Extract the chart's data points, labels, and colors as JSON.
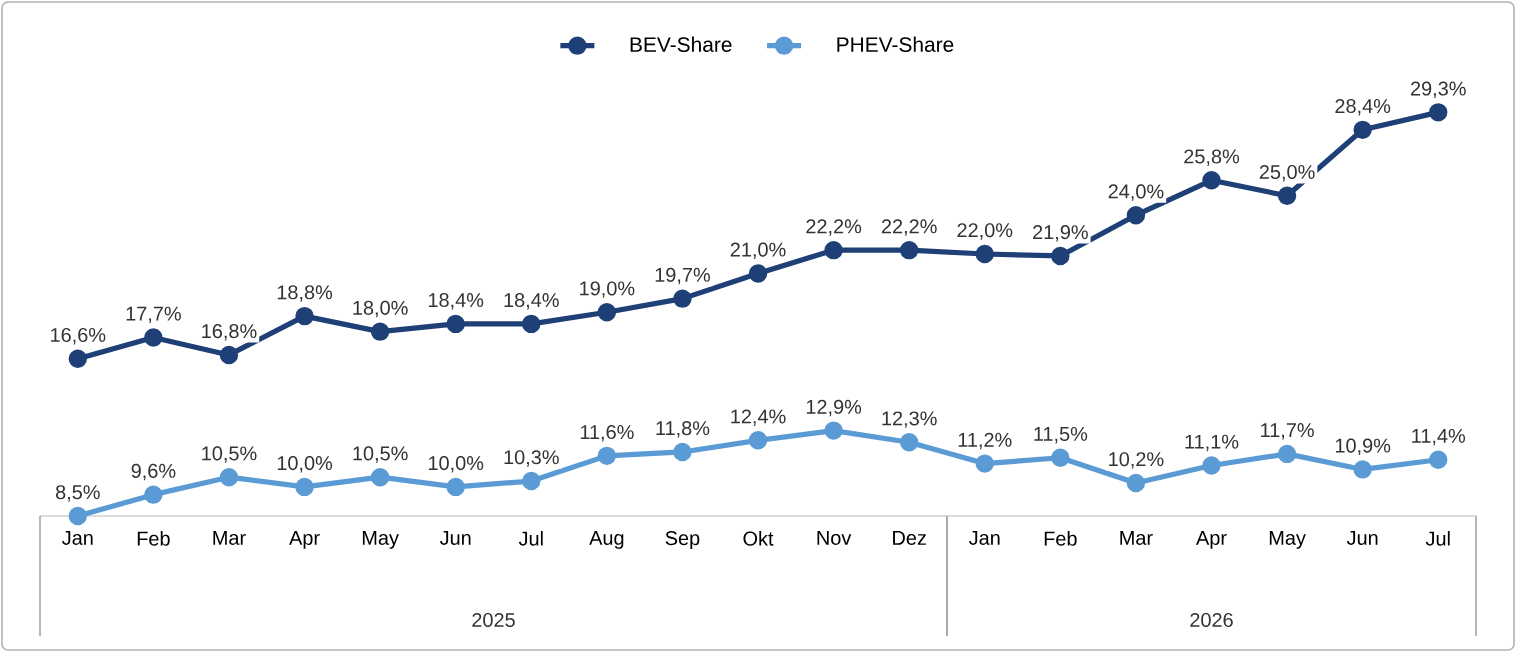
{
  "chart_data": {
    "type": "line",
    "categories": [
      "Jan",
      "Feb",
      "Mar",
      "Apr",
      "May",
      "Jun",
      "Jul",
      "Aug",
      "Sep",
      "Okt",
      "Nov",
      "Dez",
      "Jan",
      "Feb",
      "Mar",
      "Apr",
      "May",
      "Jun",
      "Jul"
    ],
    "series": [
      {
        "name": "BEV-Share",
        "color": "#1f3f77",
        "values": [
          16.6,
          17.7,
          16.8,
          18.8,
          18.0,
          18.4,
          18.4,
          19.0,
          19.7,
          21.0,
          22.2,
          22.2,
          22.0,
          21.9,
          24.0,
          25.8,
          25.0,
          28.4,
          29.3
        ],
        "value_labels": [
          "16,6%",
          "17,7%",
          "16,8%",
          "18,8%",
          "18,0%",
          "18,4%",
          "18,4%",
          "19,0%",
          "19,7%",
          "21,0%",
          "22,2%",
          "22,2%",
          "22,0%",
          "21,9%",
          "24,0%",
          "25,8%",
          "25,0%",
          "28,4%",
          "29,3%"
        ]
      },
      {
        "name": "PHEV-Share",
        "color": "#5b9bd5",
        "values": [
          8.5,
          9.6,
          10.5,
          10.0,
          10.5,
          10.0,
          10.3,
          11.6,
          11.8,
          12.4,
          12.9,
          12.3,
          11.2,
          11.5,
          10.2,
          11.1,
          11.7,
          10.9,
          11.4
        ],
        "value_labels": [
          "8,5%",
          "9,6%",
          "10,5%",
          "10,0%",
          "10,5%",
          "10,0%",
          "10,3%",
          "11,6%",
          "11,8%",
          "12,4%",
          "12,9%",
          "12,3%",
          "11,2%",
          "11,5%",
          "10,2%",
          "11,1%",
          "11,7%",
          "10,9%",
          "11,4%"
        ]
      }
    ],
    "annotations": [
      "2025",
      "2026"
    ],
    "legend": "top",
    "marker": "circle",
    "tick_labels": "x"
  }
}
